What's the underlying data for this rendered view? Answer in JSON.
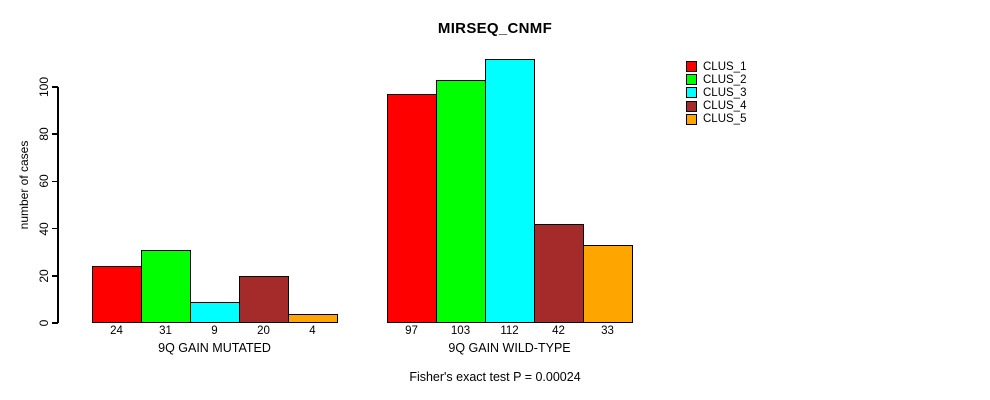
{
  "chart_data": {
    "type": "bar",
    "title": "MIRSEQ_CNMF",
    "ylabel": "number of cases",
    "ylim": [
      0,
      112
    ],
    "yticks": [
      0,
      20,
      40,
      60,
      80,
      100
    ],
    "grid": false,
    "legend_position": "right",
    "categories": [
      "CLUS_1",
      "CLUS_2",
      "CLUS_3",
      "CLUS_4",
      "CLUS_5"
    ],
    "series_colors": [
      "#ff0000",
      "#00ff00",
      "#00ffff",
      "#a52a2a",
      "#ffa500"
    ],
    "bar_border_color": "#000000",
    "groups": [
      {
        "label": "9Q GAIN MUTATED",
        "values": [
          24,
          31,
          9,
          20,
          4
        ]
      },
      {
        "label": "9Q GAIN WILD-TYPE",
        "values": [
          97,
          103,
          112,
          42,
          33
        ]
      }
    ],
    "footnote": "Fisher's exact test P = 0.00024"
  }
}
